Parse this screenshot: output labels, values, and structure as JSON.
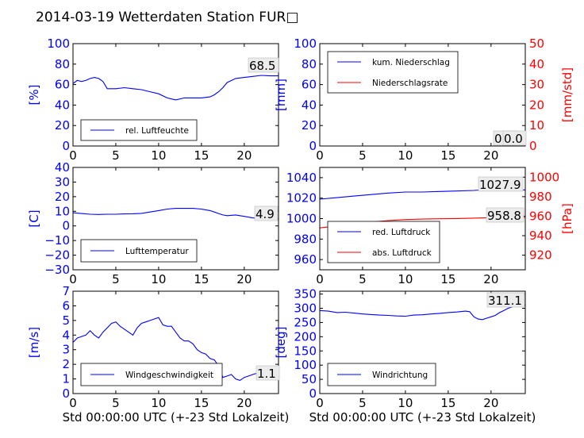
{
  "figure": {
    "title": "2014-03-19 Wetterdaten Station FUR□"
  },
  "chart_data": [
    {
      "id": "humidity",
      "type": "line",
      "title": "",
      "xlabel": "",
      "ylabel": "[%]",
      "xlim": [
        0,
        24
      ],
      "ylim": [
        0,
        100
      ],
      "xticks": [
        "0",
        "5",
        "10",
        "15",
        "20"
      ],
      "yticks": [
        "0",
        "20",
        "40",
        "60",
        "80",
        "100"
      ],
      "legend": "lower-left",
      "annotation": "68.5",
      "series": [
        {
          "name": "rel. Luftfeuchte",
          "color": "#0000ff",
          "x": [
            0,
            0.5,
            1,
            1.5,
            2,
            2.5,
            3,
            3.5,
            4,
            5,
            6,
            7,
            8,
            9,
            10,
            11,
            11.5,
            12,
            13,
            14,
            15,
            16,
            16.5,
            17,
            17.5,
            18,
            19,
            20,
            21,
            22,
            23,
            24
          ],
          "y": [
            61,
            64,
            63,
            64,
            66,
            67,
            66,
            63,
            56,
            56,
            57,
            56,
            55,
            53,
            51,
            47,
            46,
            45,
            47,
            47,
            47,
            48,
            50,
            53,
            57,
            62,
            66,
            67,
            68,
            69,
            68.5,
            68.5
          ]
        }
      ]
    },
    {
      "id": "precip",
      "type": "line",
      "title": "",
      "xlabel": "",
      "ylabel": "[mm]",
      "ylabel_right": "[mm/std]",
      "xlim": [
        0,
        24
      ],
      "ylim": [
        0,
        100
      ],
      "ylim_right": [
        0,
        50
      ],
      "xticks": [
        "0",
        "5",
        "10",
        "15",
        "20"
      ],
      "yticks": [
        "0",
        "20",
        "40",
        "60",
        "80",
        "100"
      ],
      "yticks_right": [
        "0",
        "10",
        "20",
        "30",
        "40",
        "50"
      ],
      "legend": "upper-left",
      "annotation": "0.0",
      "annotation2": "0.0",
      "series": [
        {
          "name": "kum. Niederschlag",
          "color": "#0000ff",
          "x": [
            0,
            24
          ],
          "y": [
            0,
            0
          ]
        },
        {
          "name": "Niederschlagsrate",
          "color": "#ff0000",
          "axis": "right",
          "x": [
            0,
            24
          ],
          "y": [
            0,
            0
          ]
        }
      ]
    },
    {
      "id": "temp",
      "type": "line",
      "title": "",
      "xlabel": "",
      "ylabel": "[C]",
      "xlim": [
        0,
        24
      ],
      "ylim": [
        -30,
        40
      ],
      "xticks": [
        "0",
        "5",
        "10",
        "15",
        "20"
      ],
      "yticks": [
        "−30",
        "−20",
        "−10",
        "0",
        "10",
        "20",
        "30",
        "40"
      ],
      "yvals": [
        -30,
        -20,
        -10,
        0,
        10,
        20,
        30,
        40
      ],
      "legend": "lower-left",
      "annotation": "4.9",
      "series": [
        {
          "name": "Lufttemperatur",
          "color": "#0000ff",
          "x": [
            0,
            1,
            2,
            3,
            4,
            5,
            6,
            7,
            8,
            9,
            10,
            11,
            12,
            13,
            14,
            15,
            16,
            16.5,
            17,
            17.5,
            18,
            19,
            20,
            21,
            22,
            23,
            24
          ],
          "y": [
            9,
            8.5,
            8,
            7.8,
            8,
            8,
            8.2,
            8.3,
            8.6,
            9.5,
            10.5,
            11.5,
            12,
            12,
            12,
            11.5,
            10.5,
            9.5,
            8.5,
            7.5,
            7,
            7.5,
            6.5,
            5.5,
            5,
            4.9,
            4.9
          ]
        }
      ]
    },
    {
      "id": "pressure",
      "type": "line",
      "title": "",
      "xlabel": "",
      "ylabel": "",
      "ylabel_right": "[hPa]",
      "xlim": [
        0,
        24
      ],
      "ylim": [
        950,
        1050
      ],
      "ylim_right": [
        905,
        1010
      ],
      "xticks": [
        "0",
        "5",
        "10",
        "15",
        "20"
      ],
      "yticks": [
        "960",
        "980",
        "1000",
        "1020",
        "1040"
      ],
      "yvals": [
        960,
        980,
        1000,
        1020,
        1040
      ],
      "yticks_right": [
        "920",
        "940",
        "960",
        "980",
        "1000"
      ],
      "yvals_right": [
        920,
        940,
        960,
        980,
        1000
      ],
      "legend": "lower-left",
      "annotation": "1027.9",
      "annotation2": "958.8",
      "series": [
        {
          "name": "red. Luftdruck",
          "color": "#0000ff",
          "x": [
            0,
            2,
            4,
            6,
            8,
            10,
            12,
            14,
            16,
            18,
            20,
            22,
            24
          ],
          "y": [
            1019,
            1020.5,
            1022,
            1023.5,
            1025,
            1026,
            1026,
            1026.5,
            1027,
            1027.5,
            1028.5,
            1028.5,
            1028
          ]
        },
        {
          "name": "abs. Luftdruck",
          "color": "#ff0000",
          "axis": "right",
          "x": [
            0,
            2,
            4,
            6,
            8,
            10,
            12,
            14,
            16,
            18,
            20,
            22,
            24
          ],
          "y": [
            948,
            950,
            952,
            954,
            955.5,
            956.5,
            957,
            957.3,
            957.6,
            958,
            958.5,
            958.8,
            958.8
          ]
        }
      ]
    },
    {
      "id": "wind",
      "type": "line",
      "title": "",
      "xlabel": "Std 00:00:00 UTC (+-23 Std Lokalzeit)",
      "ylabel": "[m/s]",
      "xlim": [
        0,
        24
      ],
      "ylim": [
        0,
        7
      ],
      "xticks": [
        "0",
        "5",
        "10",
        "15",
        "20"
      ],
      "yticks": [
        "0",
        "1",
        "2",
        "3",
        "4",
        "5",
        "6",
        "7"
      ],
      "yvals": [
        0,
        1,
        2,
        3,
        4,
        5,
        6,
        7
      ],
      "legend": "lower-left",
      "annotation": "1.1",
      "series": [
        {
          "name": "Windgeschwindigkeit",
          "color": "#0000ff",
          "x": [
            0,
            0.5,
            1,
            1.5,
            2,
            2.5,
            3,
            3.5,
            4,
            4.5,
            5,
            5.5,
            6,
            6.5,
            7,
            7.5,
            8,
            8.5,
            9,
            9.5,
            10,
            10.5,
            11,
            11.5,
            12,
            12.5,
            13,
            13.5,
            14,
            14.5,
            15,
            15.5,
            16,
            16.5,
            17,
            17.5,
            18,
            18.5,
            19,
            19.5,
            20,
            20.5,
            21,
            21.5,
            22,
            22.5,
            23,
            23.5,
            24
          ],
          "y": [
            3.5,
            3.8,
            3.9,
            4.0,
            4.3,
            4.0,
            3.8,
            4.2,
            4.5,
            4.8,
            4.9,
            4.6,
            4.4,
            4.2,
            4.0,
            4.5,
            4.8,
            4.9,
            5.0,
            5.1,
            5.2,
            4.7,
            4.6,
            4.6,
            4.2,
            3.8,
            3.6,
            3.6,
            3.4,
            3.0,
            2.8,
            2.7,
            2.4,
            2.3,
            1.9,
            1.1,
            1.2,
            1.3,
            1.0,
            0.9,
            1.1,
            1.2,
            1.3,
            1.4,
            1.1,
            1.2,
            1.0,
            1.1,
            1.1
          ]
        }
      ]
    },
    {
      "id": "winddir",
      "type": "line",
      "title": "",
      "xlabel": "Std 00:00:00 UTC (+-23 Std Lokalzeit)",
      "ylabel": "[deg]",
      "xlim": [
        0,
        24
      ],
      "ylim": [
        0,
        360
      ],
      "xticks": [
        "0",
        "5",
        "10",
        "15",
        "20"
      ],
      "yticks": [
        "0",
        "50",
        "100",
        "150",
        "200",
        "250",
        "300",
        "350"
      ],
      "yvals": [
        0,
        50,
        100,
        150,
        200,
        250,
        300,
        350
      ],
      "legend": "lower-left",
      "annotation": "311.1",
      "series": [
        {
          "name": "Windrichtung",
          "color": "#0000ff",
          "x": [
            0,
            1,
            2,
            3,
            4,
            5,
            6,
            7,
            8,
            9,
            10,
            11,
            12,
            13,
            14,
            15,
            16,
            17,
            17.5,
            18,
            18.5,
            19,
            19.5,
            20,
            20.5,
            21,
            21.5,
            22,
            22.5,
            23,
            23.5,
            24
          ],
          "y": [
            292,
            290,
            285,
            286,
            283,
            280,
            278,
            276,
            275,
            273,
            272,
            276,
            277,
            280,
            282,
            285,
            287,
            290,
            288,
            270,
            262,
            260,
            265,
            270,
            275,
            285,
            292,
            300,
            305,
            310,
            312,
            311
          ]
        }
      ]
    }
  ]
}
